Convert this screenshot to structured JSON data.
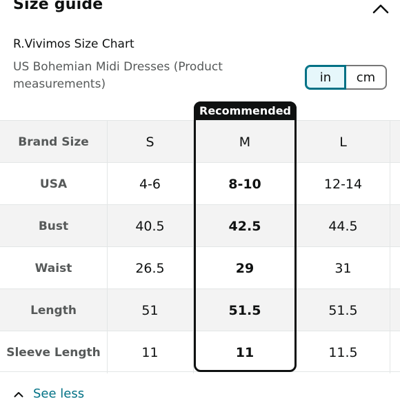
{
  "header": {
    "title": "Size guide",
    "chevron_icon": "chevron-up-icon"
  },
  "chart": {
    "title": "R.Vivimos Size Chart",
    "subtitle": "US Bohemian Midi Dresses (Product measurements)"
  },
  "units": {
    "in_label": "in",
    "cm_label": "cm",
    "selected": "in"
  },
  "recommended_label": "Recommended",
  "table": {
    "header": {
      "label": "Brand Size",
      "s": "S",
      "m": "M",
      "l": "L"
    },
    "rows": [
      {
        "label": "USA",
        "s": "4-6",
        "m": "8-10",
        "l": "12-14"
      },
      {
        "label": "Bust",
        "s": "40.5",
        "m": "42.5",
        "l": "44.5"
      },
      {
        "label": "Waist",
        "s": "26.5",
        "m": "29",
        "l": "31"
      },
      {
        "label": "Length",
        "s": "51",
        "m": "51.5",
        "l": "51.5"
      },
      {
        "label": "Sleeve Length",
        "s": "11",
        "m": "11",
        "l": "11.5"
      }
    ]
  },
  "footer": {
    "see_less_label": "See less"
  },
  "colors": {
    "link": "#007185",
    "recommended": "#0f1111",
    "selected_bg": "#e6f7fb"
  }
}
